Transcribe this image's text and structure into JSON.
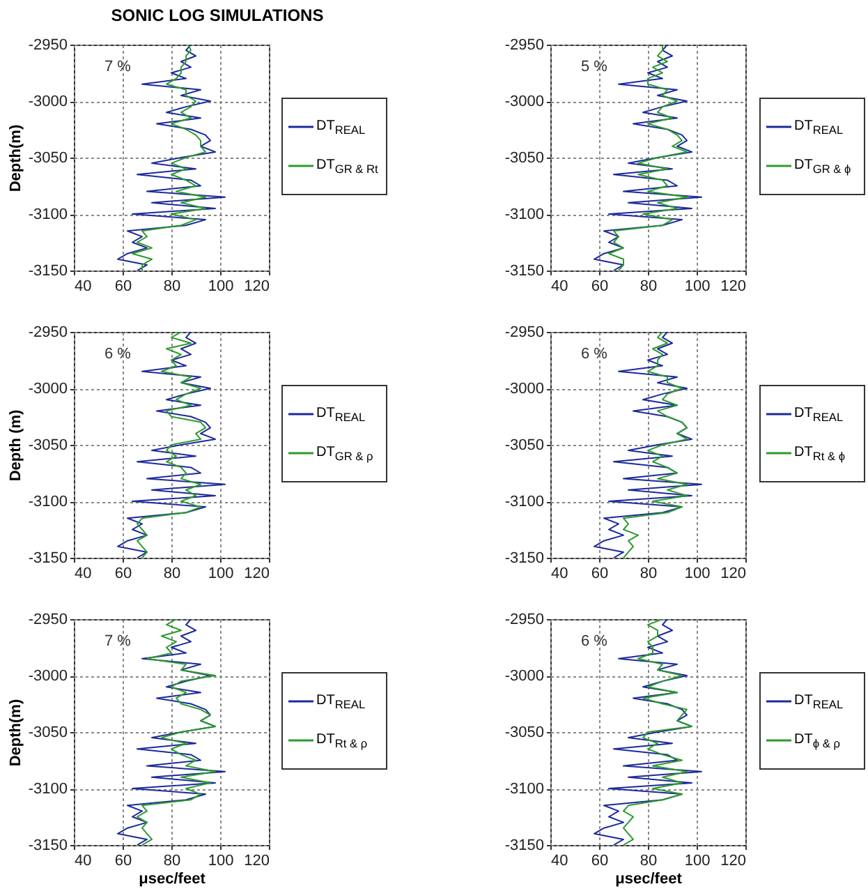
{
  "chart_data": [
    {
      "type": "line",
      "title": "SONIC LOG SIMULATIONS",
      "ylabel": "Depth(m)",
      "annotations": [
        "7 %"
      ],
      "xlim": [
        40,
        120
      ],
      "xticks": [
        40,
        60,
        80,
        100,
        120
      ],
      "ylim": [
        -3150,
        -2950
      ],
      "yticks": [
        -2950,
        -3000,
        -3050,
        -3100,
        -3150
      ],
      "grid": true,
      "legend": "right",
      "series": [
        {
          "name": "DT$_{REAL}$",
          "color": "#1c2a9c",
          "x": [
            88,
            86,
            90,
            84,
            88,
            80,
            86,
            68,
            92,
            84,
            96,
            86,
            78,
            92,
            74,
            88,
            94,
            96,
            92,
            98,
            84,
            72,
            90,
            66,
            88,
            92,
            70,
            102,
            72,
            98,
            64,
            94,
            86,
            62,
            68,
            64,
            70,
            62,
            58,
            70,
            66
          ],
          "values": [
            -2950,
            -2955,
            -2960,
            -2965,
            -2970,
            -2975,
            -2980,
            -2985,
            -2990,
            -2995,
            -3000,
            -3005,
            -3010,
            -3015,
            -3020,
            -3025,
            -3030,
            -3035,
            -3040,
            -3045,
            -3050,
            -3055,
            -3060,
            -3065,
            -3070,
            -3075,
            -3080,
            -3085,
            -3090,
            -3095,
            -3100,
            -3105,
            -3110,
            -3115,
            -3120,
            -3125,
            -3130,
            -3135,
            -3140,
            -3145,
            -3150
          ]
        },
        {
          "name": "DT$_{GR & Rt}$",
          "color": "#2e9a2e",
          "x": [
            87,
            88,
            86,
            86,
            84,
            84,
            82,
            78,
            86,
            86,
            90,
            88,
            84,
            88,
            80,
            86,
            90,
            92,
            92,
            94,
            86,
            80,
            86,
            80,
            86,
            90,
            82,
            94,
            84,
            94,
            80,
            90,
            84,
            68,
            70,
            66,
            72,
            64,
            72,
            68,
            68
          ],
          "values": [
            -2950,
            -2955,
            -2960,
            -2965,
            -2970,
            -2975,
            -2980,
            -2985,
            -2990,
            -2995,
            -3000,
            -3005,
            -3010,
            -3015,
            -3020,
            -3025,
            -3030,
            -3035,
            -3040,
            -3045,
            -3050,
            -3055,
            -3060,
            -3065,
            -3070,
            -3075,
            -3080,
            -3085,
            -3090,
            -3095,
            -3100,
            -3105,
            -3110,
            -3115,
            -3120,
            -3125,
            -3130,
            -3135,
            -3140,
            -3145,
            -3150
          ]
        }
      ]
    },
    {
      "type": "line",
      "annotations": [
        "5 %"
      ],
      "xlim": [
        40,
        120
      ],
      "xticks": [
        40,
        60,
        80,
        100,
        120
      ],
      "ylim": [
        -3150,
        -2950
      ],
      "yticks": [
        -2950,
        -3000,
        -3050,
        -3100,
        -3150
      ],
      "grid": true,
      "legend": "right",
      "series": [
        {
          "name": "DT$_{REAL}$",
          "color": "#1c2a9c",
          "x": [
            88,
            86,
            90,
            84,
            88,
            80,
            86,
            68,
            92,
            84,
            96,
            86,
            78,
            92,
            74,
            88,
            94,
            96,
            92,
            98,
            84,
            72,
            90,
            66,
            88,
            92,
            70,
            102,
            72,
            98,
            64,
            94,
            86,
            62,
            68,
            64,
            70,
            62,
            58,
            70,
            66
          ],
          "values": [
            -2950,
            -2955,
            -2960,
            -2965,
            -2970,
            -2975,
            -2980,
            -2985,
            -2990,
            -2995,
            -3000,
            -3005,
            -3010,
            -3015,
            -3020,
            -3025,
            -3030,
            -3035,
            -3040,
            -3045,
            -3050,
            -3055,
            -3060,
            -3065,
            -3070,
            -3075,
            -3080,
            -3085,
            -3090,
            -3095,
            -3100,
            -3105,
            -3110,
            -3115,
            -3120,
            -3125,
            -3130,
            -3135,
            -3140,
            -3145,
            -3150
          ]
        },
        {
          "name": "DT$_{GR & ϕ}$",
          "color": "#2e9a2e",
          "x": [
            86,
            86,
            84,
            88,
            82,
            86,
            80,
            80,
            88,
            86,
            92,
            86,
            84,
            90,
            80,
            88,
            92,
            94,
            90,
            96,
            84,
            76,
            88,
            76,
            86,
            88,
            80,
            96,
            84,
            92,
            78,
            90,
            86,
            66,
            68,
            66,
            70,
            64,
            70,
            70,
            68
          ],
          "values": [
            -2950,
            -2955,
            -2960,
            -2965,
            -2970,
            -2975,
            -2980,
            -2985,
            -2990,
            -2995,
            -3000,
            -3005,
            -3010,
            -3015,
            -3020,
            -3025,
            -3030,
            -3035,
            -3040,
            -3045,
            -3050,
            -3055,
            -3060,
            -3065,
            -3070,
            -3075,
            -3080,
            -3085,
            -3090,
            -3095,
            -3100,
            -3105,
            -3110,
            -3115,
            -3120,
            -3125,
            -3130,
            -3135,
            -3140,
            -3145,
            -3150
          ]
        }
      ]
    },
    {
      "type": "line",
      "ylabel": "Depth (m)",
      "annotations": [
        "6 %"
      ],
      "xlim": [
        40,
        120
      ],
      "xticks": [
        40,
        60,
        80,
        100,
        120
      ],
      "ylim": [
        -3150,
        -2950
      ],
      "yticks": [
        -2950,
        -3000,
        -3050,
        -3100,
        -3150
      ],
      "grid": true,
      "legend": "right",
      "series": [
        {
          "name": "DT$_{REAL}$",
          "color": "#1c2a9c",
          "x": [
            88,
            86,
            90,
            84,
            88,
            80,
            86,
            68,
            92,
            84,
            96,
            86,
            78,
            92,
            74,
            88,
            94,
            96,
            92,
            98,
            84,
            72,
            90,
            66,
            88,
            92,
            70,
            102,
            72,
            98,
            64,
            94,
            86,
            62,
            68,
            64,
            70,
            62,
            58,
            70,
            66
          ],
          "values": [
            -2950,
            -2955,
            -2960,
            -2965,
            -2970,
            -2975,
            -2980,
            -2985,
            -2990,
            -2995,
            -3000,
            -3005,
            -3010,
            -3015,
            -3020,
            -3025,
            -3030,
            -3035,
            -3040,
            -3045,
            -3050,
            -3055,
            -3060,
            -3065,
            -3070,
            -3075,
            -3080,
            -3085,
            -3090,
            -3095,
            -3100,
            -3105,
            -3110,
            -3115,
            -3120,
            -3125,
            -3130,
            -3135,
            -3140,
            -3145,
            -3150
          ]
        },
        {
          "name": "DT$_{GR & ρ}$",
          "color": "#2e9a2e",
          "x": [
            84,
            80,
            88,
            78,
            84,
            80,
            82,
            76,
            88,
            84,
            92,
            86,
            82,
            88,
            78,
            80,
            92,
            94,
            90,
            92,
            80,
            78,
            82,
            78,
            84,
            86,
            84,
            92,
            86,
            90,
            84,
            92,
            86,
            68,
            66,
            68,
            70,
            66,
            68,
            70,
            68
          ],
          "values": [
            -2950,
            -2955,
            -2960,
            -2965,
            -2970,
            -2975,
            -2980,
            -2985,
            -2990,
            -2995,
            -3000,
            -3005,
            -3010,
            -3015,
            -3020,
            -3025,
            -3030,
            -3035,
            -3040,
            -3045,
            -3050,
            -3055,
            -3060,
            -3065,
            -3070,
            -3075,
            -3080,
            -3085,
            -3090,
            -3095,
            -3100,
            -3105,
            -3110,
            -3115,
            -3120,
            -3125,
            -3130,
            -3135,
            -3140,
            -3145,
            -3150
          ]
        }
      ]
    },
    {
      "type": "line",
      "annotations": [
        "6 %"
      ],
      "xlim": [
        40,
        120
      ],
      "xticks": [
        40,
        60,
        80,
        100,
        120
      ],
      "ylim": [
        -3150,
        -2950
      ],
      "yticks": [
        -2950,
        -3000,
        -3050,
        -3100,
        -3150
      ],
      "grid": true,
      "legend": "right",
      "series": [
        {
          "name": "DT$_{REAL}$",
          "color": "#1c2a9c",
          "x": [
            88,
            86,
            90,
            84,
            88,
            80,
            86,
            68,
            92,
            84,
            96,
            86,
            78,
            92,
            74,
            88,
            94,
            96,
            92,
            98,
            84,
            72,
            90,
            66,
            88,
            92,
            70,
            102,
            72,
            98,
            64,
            94,
            86,
            62,
            68,
            64,
            70,
            62,
            58,
            70,
            66
          ],
          "values": [
            -2950,
            -2955,
            -2960,
            -2965,
            -2970,
            -2975,
            -2980,
            -2985,
            -2990,
            -2995,
            -3000,
            -3005,
            -3010,
            -3015,
            -3020,
            -3025,
            -3030,
            -3035,
            -3040,
            -3045,
            -3050,
            -3055,
            -3060,
            -3065,
            -3070,
            -3075,
            -3080,
            -3085,
            -3090,
            -3095,
            -3100,
            -3105,
            -3110,
            -3115,
            -3120,
            -3125,
            -3130,
            -3135,
            -3140,
            -3145,
            -3150
          ]
        },
        {
          "name": "DT$_{Rt & ϕ}$",
          "color": "#2e9a2e",
          "x": [
            86,
            84,
            88,
            82,
            86,
            84,
            84,
            80,
            88,
            88,
            94,
            88,
            86,
            92,
            84,
            88,
            94,
            96,
            92,
            96,
            86,
            80,
            86,
            82,
            88,
            92,
            84,
            96,
            88,
            96,
            82,
            94,
            88,
            70,
            72,
            70,
            76,
            72,
            74,
            72,
            70
          ],
          "values": [
            -2950,
            -2955,
            -2960,
            -2965,
            -2970,
            -2975,
            -2980,
            -2985,
            -2990,
            -2995,
            -3000,
            -3005,
            -3010,
            -3015,
            -3020,
            -3025,
            -3030,
            -3035,
            -3040,
            -3045,
            -3050,
            -3055,
            -3060,
            -3065,
            -3070,
            -3075,
            -3080,
            -3085,
            -3090,
            -3095,
            -3100,
            -3105,
            -3110,
            -3115,
            -3120,
            -3125,
            -3130,
            -3135,
            -3140,
            -3145,
            -3150
          ]
        }
      ]
    },
    {
      "type": "line",
      "xlabel": "μsec/feet",
      "ylabel": "Depth(m)",
      "annotations": [
        "7 %"
      ],
      "xlim": [
        40,
        120
      ],
      "xticks": [
        40,
        60,
        80,
        100,
        120
      ],
      "ylim": [
        -3150,
        -2950
      ],
      "yticks": [
        -2950,
        -3000,
        -3050,
        -3100,
        -3150
      ],
      "grid": true,
      "legend": "right",
      "series": [
        {
          "name": "DT$_{REAL}$",
          "color": "#1c2a9c",
          "x": [
            88,
            86,
            90,
            84,
            88,
            80,
            86,
            68,
            92,
            84,
            96,
            86,
            78,
            92,
            74,
            88,
            94,
            96,
            92,
            98,
            84,
            72,
            90,
            66,
            88,
            92,
            70,
            102,
            72,
            98,
            64,
            94,
            86,
            62,
            68,
            64,
            70,
            62,
            58,
            70,
            66
          ],
          "values": [
            -2950,
            -2955,
            -2960,
            -2965,
            -2970,
            -2975,
            -2980,
            -2985,
            -2990,
            -2995,
            -3000,
            -3005,
            -3010,
            -3015,
            -3020,
            -3025,
            -3030,
            -3035,
            -3040,
            -3045,
            -3050,
            -3055,
            -3060,
            -3065,
            -3070,
            -3075,
            -3080,
            -3085,
            -3090,
            -3095,
            -3100,
            -3105,
            -3110,
            -3115,
            -3120,
            -3125,
            -3130,
            -3135,
            -3140,
            -3145,
            -3150
          ]
        },
        {
          "name": "DT$_{Rt & ρ}$",
          "color": "#2e9a2e",
          "x": [
            82,
            78,
            84,
            76,
            82,
            78,
            80,
            70,
            86,
            84,
            98,
            84,
            80,
            86,
            82,
            84,
            92,
            96,
            92,
            98,
            84,
            76,
            86,
            80,
            84,
            90,
            86,
            98,
            84,
            96,
            86,
            92,
            88,
            68,
            70,
            66,
            70,
            68,
            70,
            72,
            68
          ],
          "values": [
            -2950,
            -2955,
            -2960,
            -2965,
            -2970,
            -2975,
            -2980,
            -2985,
            -2990,
            -2995,
            -3000,
            -3005,
            -3010,
            -3015,
            -3020,
            -3025,
            -3030,
            -3035,
            -3040,
            -3045,
            -3050,
            -3055,
            -3060,
            -3065,
            -3070,
            -3075,
            -3080,
            -3085,
            -3090,
            -3095,
            -3100,
            -3105,
            -3110,
            -3115,
            -3120,
            -3125,
            -3130,
            -3135,
            -3140,
            -3145,
            -3150
          ]
        }
      ]
    },
    {
      "type": "line",
      "xlabel": "μsec/feet",
      "annotations": [
        "6 %"
      ],
      "xlim": [
        40,
        120
      ],
      "xticks": [
        40,
        60,
        80,
        100,
        120
      ],
      "ylim": [
        -3150,
        -2950
      ],
      "yticks": [
        -2950,
        -3000,
        -3050,
        -3100,
        -3150
      ],
      "grid": true,
      "legend": "right",
      "series": [
        {
          "name": "DT$_{REAL}$",
          "color": "#1c2a9c",
          "x": [
            88,
            86,
            90,
            84,
            88,
            80,
            86,
            68,
            92,
            84,
            96,
            86,
            78,
            92,
            74,
            88,
            94,
            96,
            92,
            98,
            84,
            72,
            90,
            66,
            88,
            92,
            70,
            102,
            72,
            98,
            64,
            94,
            86,
            62,
            68,
            64,
            70,
            62,
            58,
            70,
            66
          ],
          "values": [
            -2950,
            -2955,
            -2960,
            -2965,
            -2970,
            -2975,
            -2980,
            -2985,
            -2990,
            -2995,
            -3000,
            -3005,
            -3010,
            -3015,
            -3020,
            -3025,
            -3030,
            -3035,
            -3040,
            -3045,
            -3050,
            -3055,
            -3060,
            -3065,
            -3070,
            -3075,
            -3080,
            -3085,
            -3090,
            -3095,
            -3100,
            -3105,
            -3110,
            -3115,
            -3120,
            -3125,
            -3130,
            -3135,
            -3140,
            -3145,
            -3150
          ]
        },
        {
          "name": "DT$_{ϕ & ρ}$",
          "color": "#2e9a2e",
          "x": [
            86,
            80,
            84,
            84,
            80,
            82,
            82,
            76,
            86,
            84,
            94,
            86,
            80,
            92,
            78,
            86,
            96,
            94,
            92,
            98,
            80,
            78,
            84,
            80,
            86,
            94,
            82,
            96,
            86,
            94,
            82,
            94,
            86,
            72,
            70,
            74,
            72,
            70,
            72,
            74,
            70
          ],
          "values": [
            -2950,
            -2955,
            -2960,
            -2965,
            -2970,
            -2975,
            -2980,
            -2985,
            -2990,
            -2995,
            -3000,
            -3005,
            -3010,
            -3015,
            -3020,
            -3025,
            -3030,
            -3035,
            -3040,
            -3045,
            -3050,
            -3055,
            -3060,
            -3065,
            -3070,
            -3075,
            -3080,
            -3085,
            -3090,
            -3095,
            -3100,
            -3105,
            -3110,
            -3115,
            -3120,
            -3125,
            -3130,
            -3135,
            -3140,
            -3145,
            -3150
          ]
        }
      ]
    }
  ]
}
